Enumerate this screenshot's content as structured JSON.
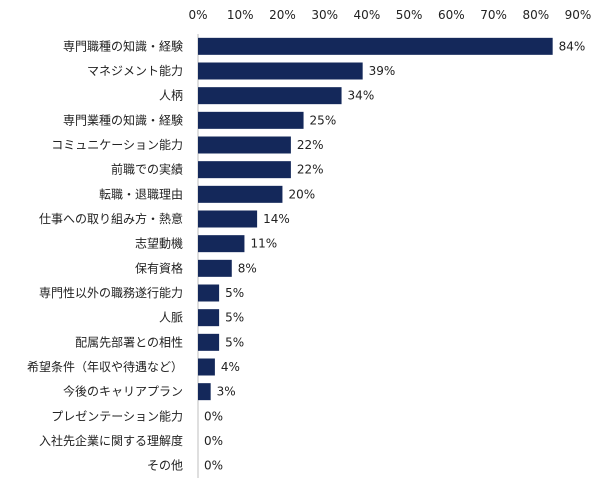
{
  "chart_data": {
    "type": "bar",
    "orientation": "horizontal",
    "categories": [
      "専門職種の知識・経験",
      "マネジメント能力",
      "人柄",
      "専門業種の知識・経験",
      "コミュニケーション能力",
      "前職での実績",
      "転職・退職理由",
      "仕事への取り組み方・熱意",
      "志望動機",
      "保有資格",
      "専門性以外の職務遂行能力",
      "人脈",
      "配属先部署との相性",
      "希望条件（年収や待遇など）",
      "今後のキャリアプラン",
      "プレゼンテーション能力",
      "入社先企業に関する理解度",
      "その他"
    ],
    "values": [
      84,
      39,
      34,
      25,
      22,
      22,
      20,
      14,
      11,
      8,
      5,
      5,
      5,
      4,
      3,
      0,
      0,
      0
    ],
    "value_labels": [
      "84%",
      "39%",
      "34%",
      "25%",
      "22%",
      "22%",
      "20%",
      "14%",
      "11%",
      "8%",
      "5%",
      "5%",
      "5%",
      "4%",
      "3%",
      "0%",
      "0%",
      "0%"
    ],
    "x_ticks": [
      0,
      10,
      20,
      30,
      40,
      50,
      60,
      70,
      80,
      90
    ],
    "x_tick_labels": [
      "0%",
      "10%",
      "20%",
      "30%",
      "40%",
      "50%",
      "60%",
      "70%",
      "80%",
      "90%"
    ],
    "xlim": [
      0,
      90
    ],
    "grid": false,
    "legend": "none",
    "title": "",
    "xlabel": "",
    "ylabel": "",
    "colors": {
      "bar": "#14285a",
      "axis": "#bfbfbf",
      "text": "#222222"
    }
  }
}
